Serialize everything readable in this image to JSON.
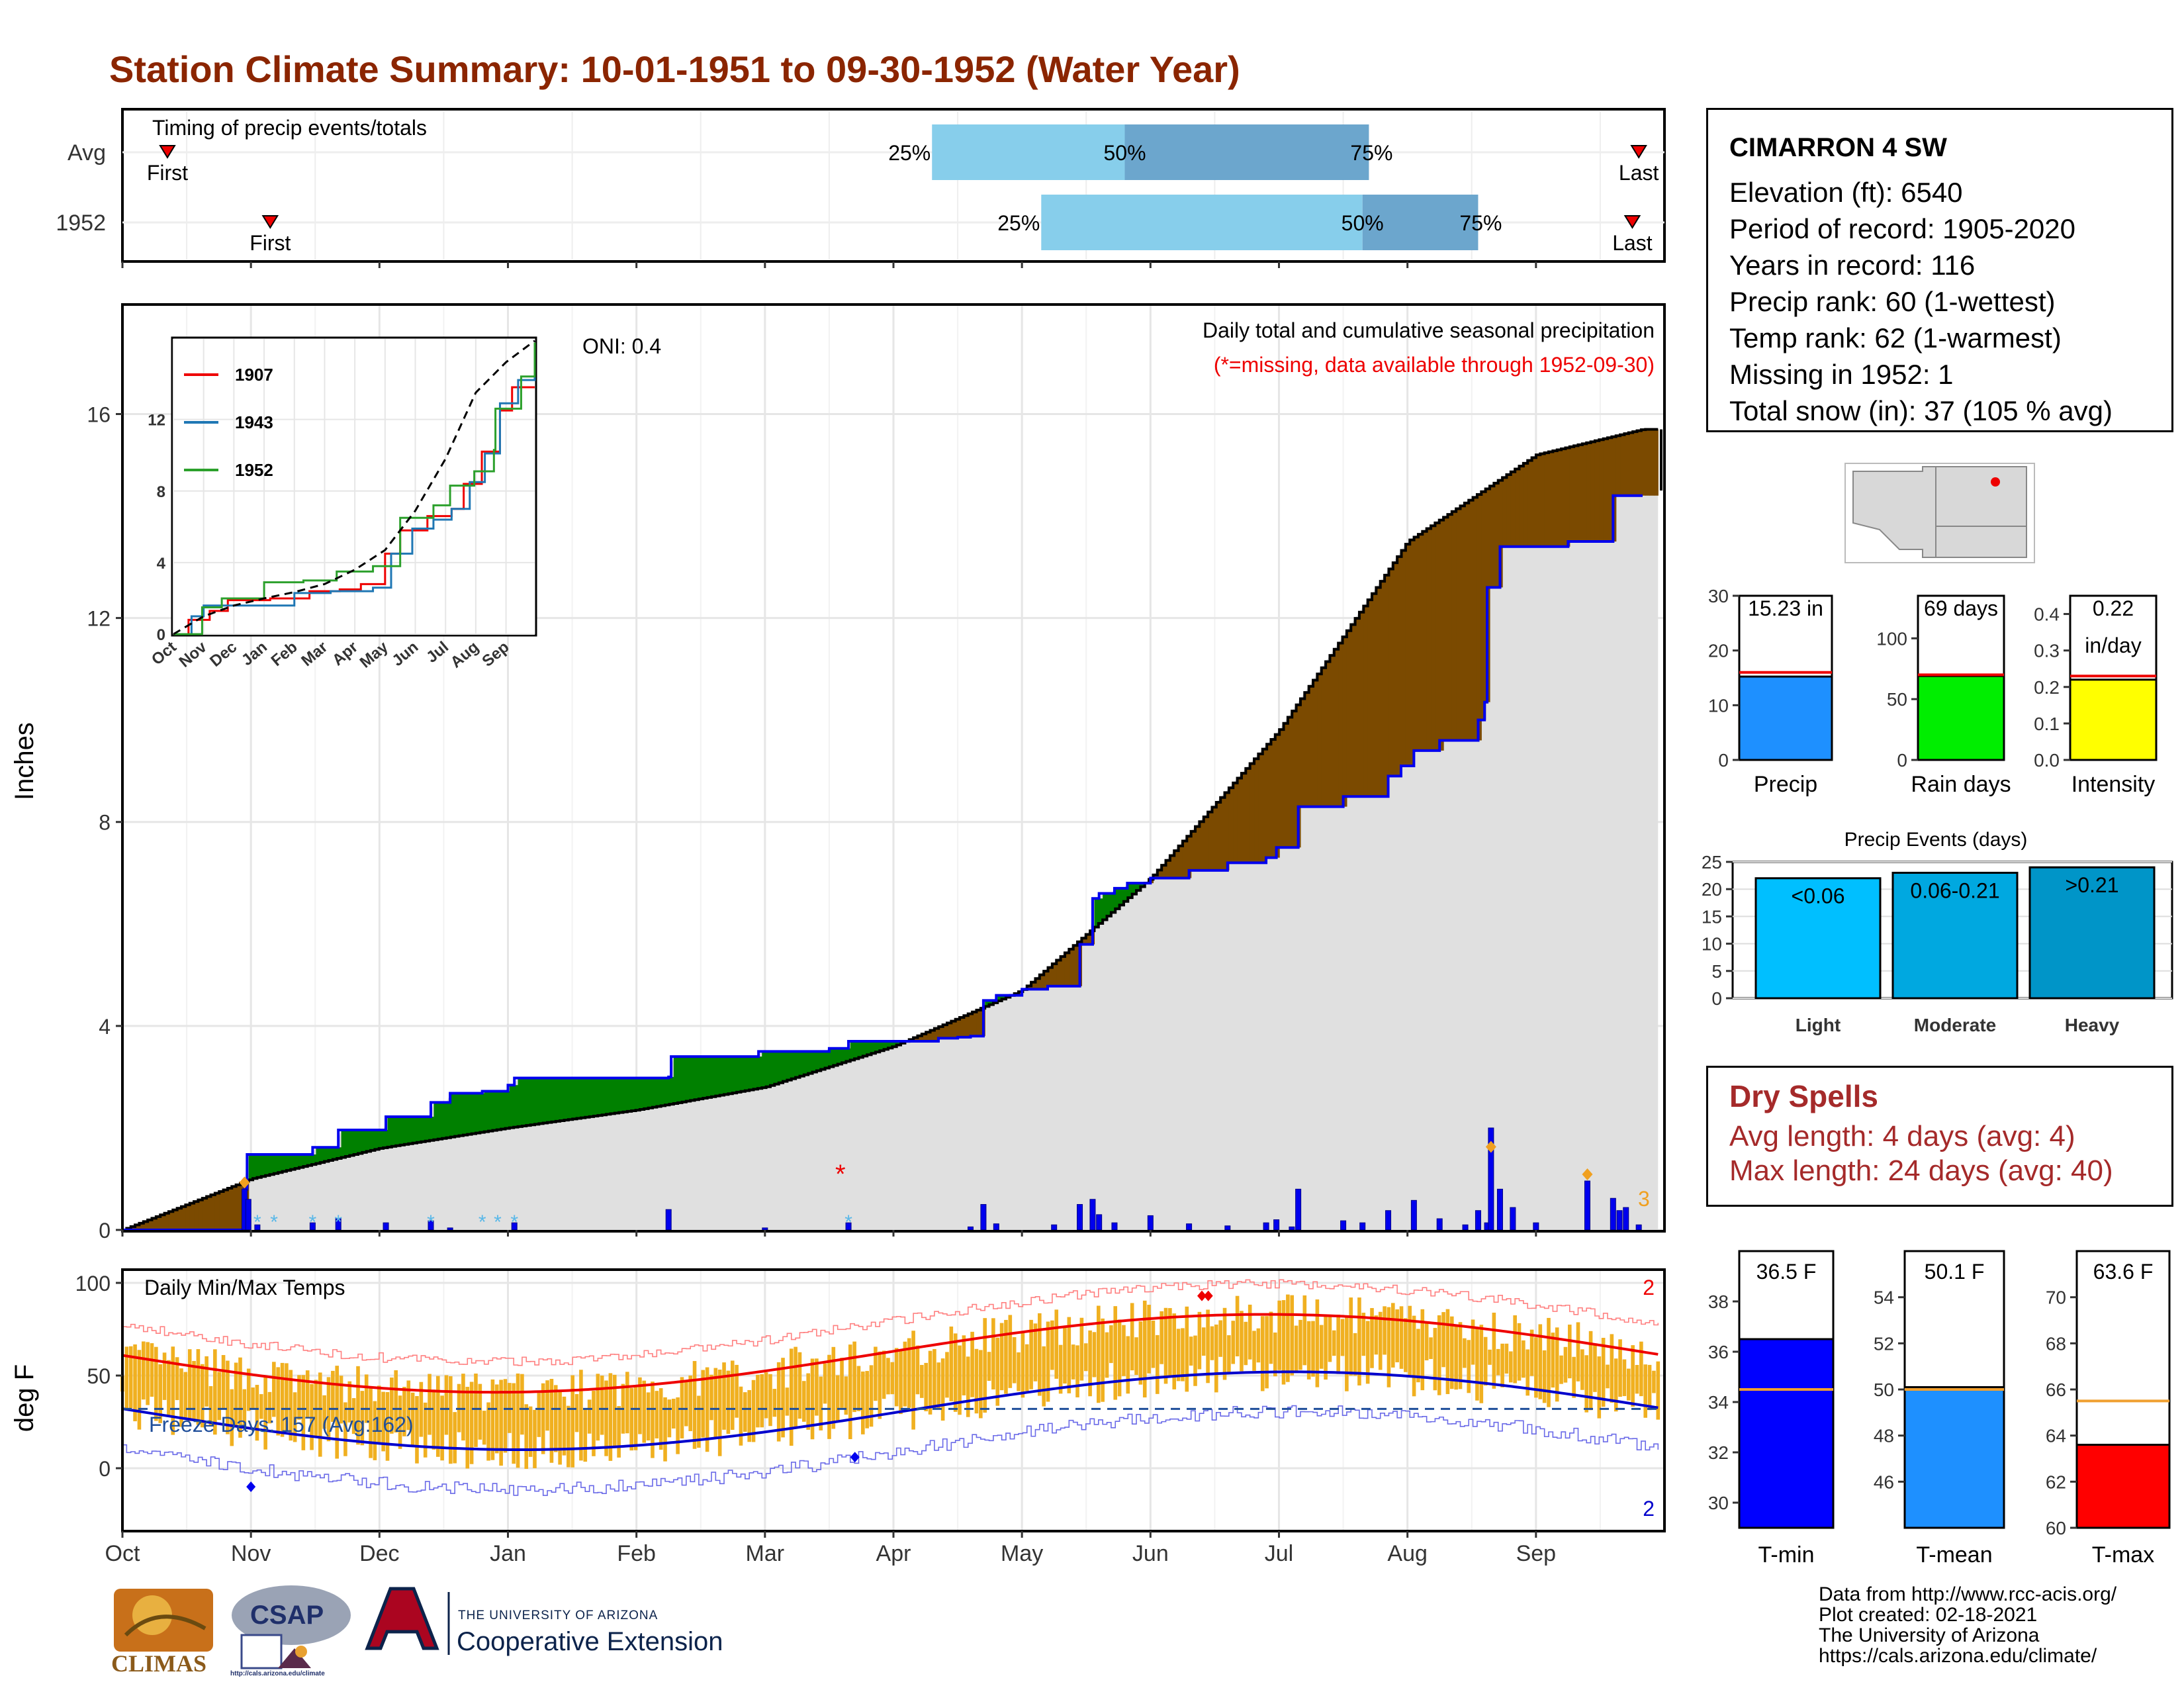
{
  "title": "Station Climate Summary: 10-01-1951 to 09-30-1952 (Water Year)",
  "colors": {
    "title": "#8B2500",
    "precip_deficit": "#7B4A00",
    "precip_surplus": "#008000",
    "avg_line": "#000000",
    "obs_line": "#0000EE",
    "tmax": "#EE0000",
    "tmin": "#0000CC",
    "bars": "#F0B020"
  },
  "timing": {
    "label": "Timing of precip events/totals",
    "rows": [
      {
        "name": "Avg",
        "first": "First",
        "last": "Last",
        "q25": "25%",
        "q50": "50%",
        "q75": "75%",
        "first_month": 0.35,
        "last_month": 11.8,
        "q25_month": 6.3,
        "q50_month": 7.8,
        "q75_month": 9.7
      },
      {
        "name": "1952",
        "first": "First",
        "last": "Last",
        "q25": "25%",
        "q50": "50%",
        "q75": "75%",
        "first_month": 1.15,
        "last_month": 11.75,
        "q25_month": 7.15,
        "q50_month": 9.65,
        "q75_month": 10.55
      }
    ]
  },
  "precip_chart": {
    "ylabel": "Inches",
    "oni": "ONI: 0.4",
    "header": "Daily total and cumulative seasonal precipitation",
    "note": "(*=missing, data available through 1952-09-30)",
    "count_label": "3",
    "yticks": [
      "0",
      "4",
      "8",
      "12",
      "16"
    ],
    "months": [
      "Oct",
      "Nov",
      "Dec",
      "Jan",
      "Feb",
      "Mar",
      "Apr",
      "May",
      "Jun",
      "Jul",
      "Aug",
      "Sep"
    ]
  },
  "inset": {
    "yticks": [
      "0",
      "4",
      "8",
      "12"
    ],
    "months": [
      "Oct",
      "Nov",
      "Dec",
      "Jan",
      "Feb",
      "Mar",
      "Apr",
      "May",
      "Jun",
      "Jul",
      "Aug",
      "Sep"
    ],
    "legend": [
      "1907",
      "1943",
      "1952"
    ]
  },
  "temp_chart": {
    "ylabel": "deg F",
    "label": "Daily Min/Max Temps",
    "freeze": "Freeze Days: 157 (Avg:162)",
    "rec_high": "2",
    "rec_low": "2",
    "yticks": [
      "0",
      "50",
      "100"
    ]
  },
  "station": {
    "name": "CIMARRON 4 SW",
    "elevation": "Elevation (ft): 6540",
    "period": "Period of record: 1905-2020",
    "years": "Years in record: 116",
    "precip_rank": "Precip rank: 60 (1-wettest)",
    "temp_rank": "Temp rank: 62 (1-warmest)",
    "missing": "Missing in 1952: 1",
    "snow": "Total snow (in): 37 (105 % avg)"
  },
  "summary_bars": [
    {
      "label": "Precip",
      "value_label": "15.23 in",
      "value": 15.23,
      "avg": 16.0,
      "max": 30,
      "ticks": [
        "0",
        "10",
        "20",
        "30"
      ],
      "color": "#1E90FF"
    },
    {
      "label": "Rain days",
      "value_label": "69 days",
      "value": 69,
      "avg": 70,
      "max": 135,
      "ticks": [
        "0",
        "50",
        "100"
      ],
      "color": "#00EE00"
    },
    {
      "label": "Intensity",
      "value_label": "0.22",
      "value_label2": "in/day",
      "value": 0.22,
      "avg": 0.23,
      "max": 0.45,
      "ticks": [
        "0.0",
        "0.1",
        "0.2",
        "0.3",
        "0.4"
      ],
      "color": "#FFFF00"
    }
  ],
  "events": {
    "title": "Precip Events (days)",
    "ticks": [
      "0",
      "5",
      "10",
      "15",
      "20",
      "25"
    ],
    "bars": [
      {
        "label": "Light",
        "value_label": "<0.06",
        "value": 22,
        "color": "#00BFFF"
      },
      {
        "label": "Moderate",
        "value_label": "0.06-0.21",
        "value": 23,
        "color": "#00A8E0"
      },
      {
        "label": "Heavy",
        "value_label": ">0.21",
        "value": 24,
        "color": "#0095C8"
      }
    ]
  },
  "dry_spells": {
    "title": "Dry Spells",
    "avg": "Avg length: 4 days (avg: 4)",
    "max": "Max length: 24 days (avg: 40)"
  },
  "temp_bars": [
    {
      "label": "T-min",
      "value_label": "36.5 F",
      "value": 36.5,
      "avg": 34.5,
      "min": 29,
      "max": 40,
      "ticks": [
        "30",
        "32",
        "34",
        "36",
        "38"
      ],
      "color": "#0000FF"
    },
    {
      "label": "T-mean",
      "value_label": "50.1 F",
      "value": 50.1,
      "avg": 50.0,
      "min": 44,
      "max": 56,
      "ticks": [
        "46",
        "48",
        "50",
        "52",
        "54"
      ],
      "color": "#1E90FF"
    },
    {
      "label": "T-max",
      "value_label": "63.6 F",
      "value": 63.6,
      "avg": 65.5,
      "min": 60,
      "max": 72,
      "ticks": [
        "60",
        "62",
        "64",
        "66",
        "68",
        "70"
      ],
      "color": "#FF0000"
    }
  ],
  "footer": {
    "line1": "Data from http://www.rcc-acis.org/",
    "line2": "Plot created: 02-18-2021",
    "line3": "The University of Arizona",
    "line4": "https://cals.arizona.edu/climate/"
  },
  "logos": {
    "climas": "CLIMAS",
    "csap": "CSAP",
    "csap_url": "http://cals.arizona.edu/climate",
    "ua_top": "THE UNIVERSITY OF ARIZONA",
    "ua_bottom": "Cooperative Extension"
  }
}
